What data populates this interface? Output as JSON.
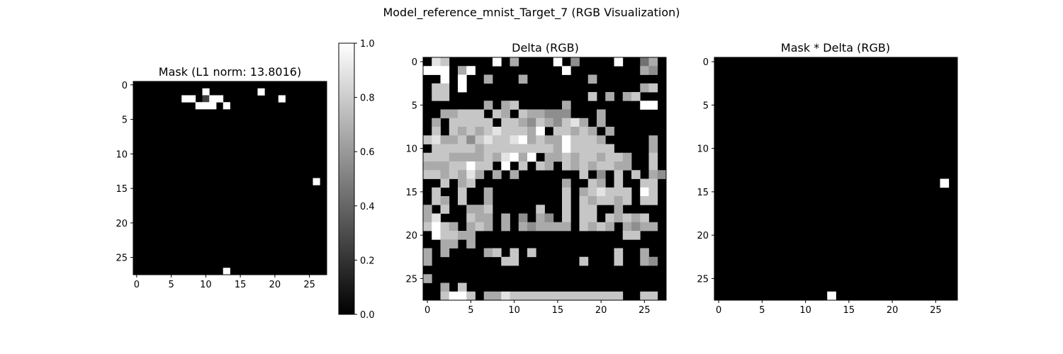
{
  "figure": {
    "suptitle": "Model_reference_mnist_Target_7 (RGB Visualization)"
  },
  "chart_data": [
    {
      "type": "heatmap",
      "title": "Mask (L1 norm: 13.8016)",
      "xlabel": "",
      "ylabel": "",
      "rows": 28,
      "cols": 28,
      "xticks": [
        0,
        5,
        10,
        15,
        20,
        25
      ],
      "yticks": [
        0,
        5,
        10,
        15,
        20,
        25
      ],
      "colormap": "gray",
      "colorbar": {
        "min": 0.0,
        "max": 1.0,
        "ticks": [
          "0.0",
          "0.2",
          "0.4",
          "0.6",
          "0.8",
          "1.0"
        ]
      },
      "cells": [
        {
          "r": 1,
          "c": 10,
          "v": 1.0
        },
        {
          "r": 1,
          "c": 18,
          "v": 1.0
        },
        {
          "r": 2,
          "c": 7,
          "v": 1.0
        },
        {
          "r": 2,
          "c": 8,
          "v": 1.0
        },
        {
          "r": 2,
          "c": 10,
          "v": 0.25
        },
        {
          "r": 2,
          "c": 11,
          "v": 1.0
        },
        {
          "r": 2,
          "c": 12,
          "v": 1.0
        },
        {
          "r": 2,
          "c": 21,
          "v": 1.0
        },
        {
          "r": 3,
          "c": 9,
          "v": 1.0
        },
        {
          "r": 3,
          "c": 10,
          "v": 1.0
        },
        {
          "r": 3,
          "c": 11,
          "v": 1.0
        },
        {
          "r": 3,
          "c": 13,
          "v": 1.0
        },
        {
          "r": 14,
          "c": 26,
          "v": 1.0
        },
        {
          "r": 27,
          "c": 13,
          "v": 1.0
        }
      ]
    },
    {
      "type": "heatmap",
      "title": "Delta (RGB)",
      "xlabel": "",
      "ylabel": "",
      "rows": 28,
      "cols": 28,
      "xticks": [
        0,
        5,
        10,
        15,
        20,
        25
      ],
      "yticks": [
        0,
        5,
        10,
        15,
        20,
        25
      ],
      "colormap": "gray",
      "grid_rows": [
        "0870000090600009050000900460",
        "9990690000000000900000000650",
        "0090900600060000000600000000",
        "0770900000000000000000000670",
        "0770000000000000000706067000",
        "0000000606700000600000000990",
        "0066777076076655500060000000",
        "0607777707765765786060000000",
        "0707676787776907767606000000",
        "7866757877896766977760000060",
        "0777776777777776977777000060",
        "7776666768969066767767760070",
        "6667797709070760767677660070",
        "7767686060600000007050707065",
        "0070670000000000600760700770",
        "0700700600000000706787770970",
        "0760700600000000707677670770",
        "6070066700000700707700600000",
        "6800076606050650707707676700",
        "7976067606065666607676065660",
        "0977660000000000000000077000",
        "0066060000000000000000000000",
        "6060000670707000000000700600",
        "6000000007700000007000700650",
        "0000000000000000000000000000",
        "6000000000000000000000000000",
        "0060700000000000000000000000",
        "0079970668777777777777700770"
      ],
      "grid_scale": "digit / 9"
    },
    {
      "type": "heatmap",
      "title": "Mask * Delta (RGB)",
      "xlabel": "",
      "ylabel": "",
      "rows": 28,
      "cols": 28,
      "xticks": [
        0,
        5,
        10,
        15,
        20,
        25
      ],
      "yticks": [
        0,
        5,
        10,
        15,
        20,
        25
      ],
      "colormap": "gray",
      "cells": [
        {
          "r": 14,
          "c": 26,
          "v": 1.0
        },
        {
          "r": 27,
          "c": 13,
          "v": 1.0
        }
      ]
    }
  ]
}
